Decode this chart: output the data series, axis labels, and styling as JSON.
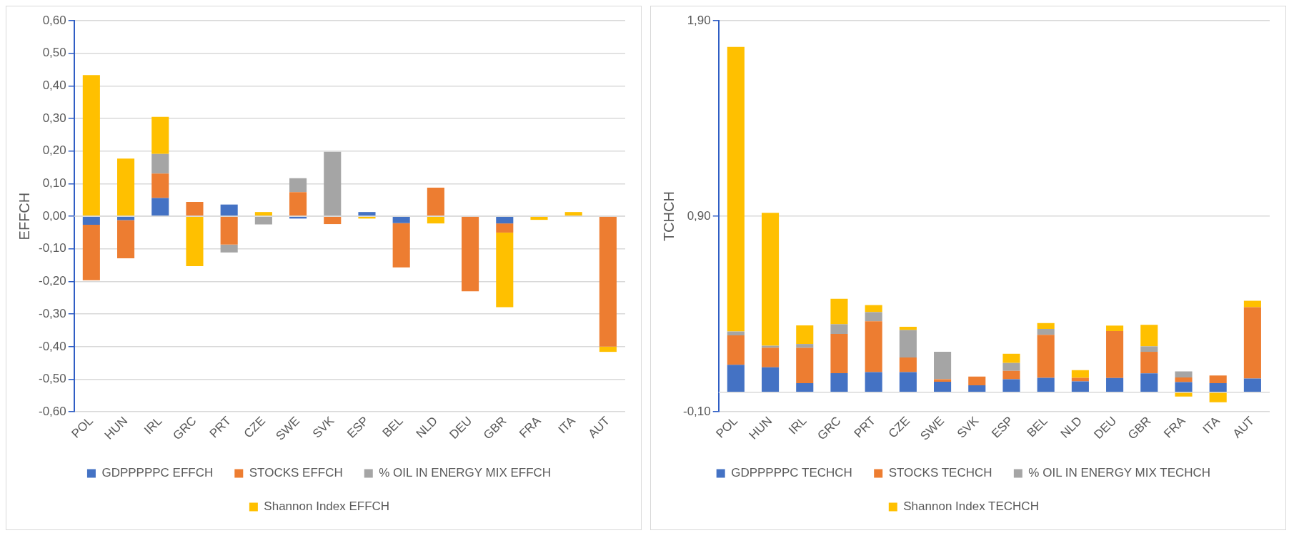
{
  "chart_data": [
    {
      "type": "bar",
      "stacked": true,
      "ylabel": "EFFCH",
      "categories": [
        "POL",
        "HUN",
        "IRL",
        "GRC",
        "PRT",
        "CZE",
        "SWE",
        "SVK",
        "ESP",
        "BEL",
        "NLD",
        "DEU",
        "GBR",
        "FRA",
        "ITA",
        "AUT"
      ],
      "series": [
        {
          "name": "GDPPPPPC EFFCH",
          "color": "#4472c4",
          "values": [
            -0.026,
            -0.012,
            0.056,
            null,
            0.036,
            null,
            -0.007,
            null,
            0.013,
            -0.021,
            null,
            null,
            -0.022,
            null,
            null,
            null
          ]
        },
        {
          "name": "STOCKS EFFCH",
          "color": "#ed7d31",
          "values": [
            -0.17,
            -0.117,
            0.075,
            0.044,
            -0.087,
            null,
            0.074,
            -0.024,
            null,
            -0.136,
            0.088,
            -0.23,
            -0.028,
            null,
            null,
            -0.4
          ]
        },
        {
          "name": "% OIL IN ENERGY MIX EFFCH",
          "color": "#a5a5a5",
          "values": [
            null,
            null,
            0.06,
            null,
            -0.024,
            -0.025,
            0.043,
            0.198,
            null,
            null,
            null,
            null,
            null,
            null,
            null,
            null
          ]
        },
        {
          "name": "Shannon Index EFFCH",
          "color": "#ffc000",
          "values": [
            0.433,
            0.177,
            0.114,
            -0.153,
            null,
            0.013,
            null,
            null,
            -0.007,
            null,
            -0.022,
            null,
            -0.229,
            -0.011,
            0.013,
            -0.016
          ]
        }
      ],
      "ylim": [
        -0.6,
        0.6
      ],
      "yticks": [
        {
          "value": -0.6,
          "label": "-0,60"
        },
        {
          "value": -0.5,
          "label": "-0,50"
        },
        {
          "value": -0.4,
          "label": "-0,40"
        },
        {
          "value": -0.3,
          "label": "-0,30"
        },
        {
          "value": -0.2,
          "label": "-0,20"
        },
        {
          "value": -0.1,
          "label": "-0,10"
        },
        {
          "value": 0,
          "label": "0,00"
        },
        {
          "value": 0.1,
          "label": "0,10"
        },
        {
          "value": 0.2,
          "label": "0,20"
        },
        {
          "value": 0.3,
          "label": "0,30"
        },
        {
          "value": 0.4,
          "label": "0,40"
        },
        {
          "value": 0.5,
          "label": "0,50"
        },
        {
          "value": 0.6,
          "label": "0,60"
        }
      ],
      "grid": "y",
      "legend": "bottom"
    },
    {
      "type": "bar",
      "stacked": true,
      "ylabel": "TCHCH",
      "categories": [
        "POL",
        "HUN",
        "IRL",
        "GRC",
        "PRT",
        "CZE",
        "SWE",
        "SVK",
        "ESP",
        "BEL",
        "NLD",
        "DEU",
        "GBR",
        "FRA",
        "ITA",
        "AUT"
      ],
      "series": [
        {
          "name": "GDPPPPPC TECHCH",
          "color": "#4472c4",
          "values": [
            0.141,
            0.128,
            0.047,
            0.098,
            0.103,
            0.103,
            0.054,
            0.036,
            0.067,
            0.074,
            0.056,
            0.073,
            0.097,
            0.052,
            0.047,
            0.07
          ]
        },
        {
          "name": "STOCKS TECHCH",
          "color": "#ed7d31",
          "values": [
            0.15,
            0.1,
            0.18,
            0.2,
            0.26,
            0.075,
            0.013,
            0.044,
            0.043,
            0.22,
            0.018,
            0.24,
            0.11,
            0.024,
            0.039,
            0.365
          ]
        },
        {
          "name": "% OIL IN ENERGY MIX TECHCH",
          "color": "#a5a5a5",
          "values": [
            0.02,
            0.01,
            0.02,
            0.05,
            0.047,
            0.14,
            0.14,
            null,
            0.04,
            0.03,
            null,
            null,
            0.028,
            0.031,
            null,
            null
          ]
        },
        {
          "name": "Shannon Index TECHCH",
          "color": "#ffc000",
          "values": [
            1.455,
            0.68,
            0.095,
            0.13,
            0.036,
            0.017,
            null,
            null,
            0.047,
            0.03,
            0.039,
            0.028,
            0.11,
            -0.022,
            -0.051,
            0.033
          ]
        }
      ],
      "ylim": [
        -0.1,
        1.9
      ],
      "yticks": [
        {
          "value": -0.1,
          "label": "-0,10"
        },
        {
          "value": 0.9,
          "label": "0,90"
        },
        {
          "value": 1.9,
          "label": "1,90"
        }
      ],
      "grid": "y",
      "legend": "bottom"
    }
  ]
}
